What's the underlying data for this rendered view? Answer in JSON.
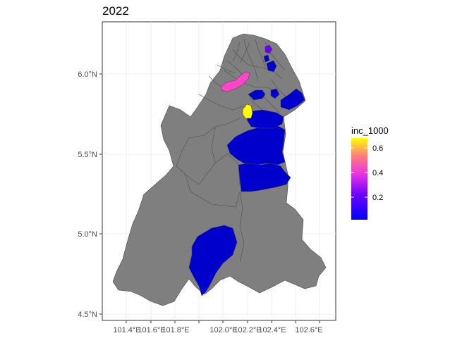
{
  "title": "2022",
  "map": {
    "x_ticks": [
      "101.4°E",
      "101.6°E",
      "101.8°E",
      "102.0°E",
      "102.2°E",
      "102.4°E",
      "102.6°E"
    ],
    "y_ticks": [
      "6.0°N",
      "5.5°N",
      "5.0°N",
      "4.5°N"
    ],
    "legend": {
      "title": "inc_1000",
      "labels": [
        "0.6",
        "0.4",
        "0.2"
      ],
      "range": [
        0.02,
        0.68
      ],
      "colors": [
        "#0000ff",
        "#ff00ff",
        "#ffff00"
      ]
    },
    "region_colors": {
      "no_data": "#7f7f7f",
      "low": "#0000cc",
      "mid_low": "#6c00ff",
      "mid_high": "#ff45c8",
      "high": "#ffff00"
    }
  }
}
